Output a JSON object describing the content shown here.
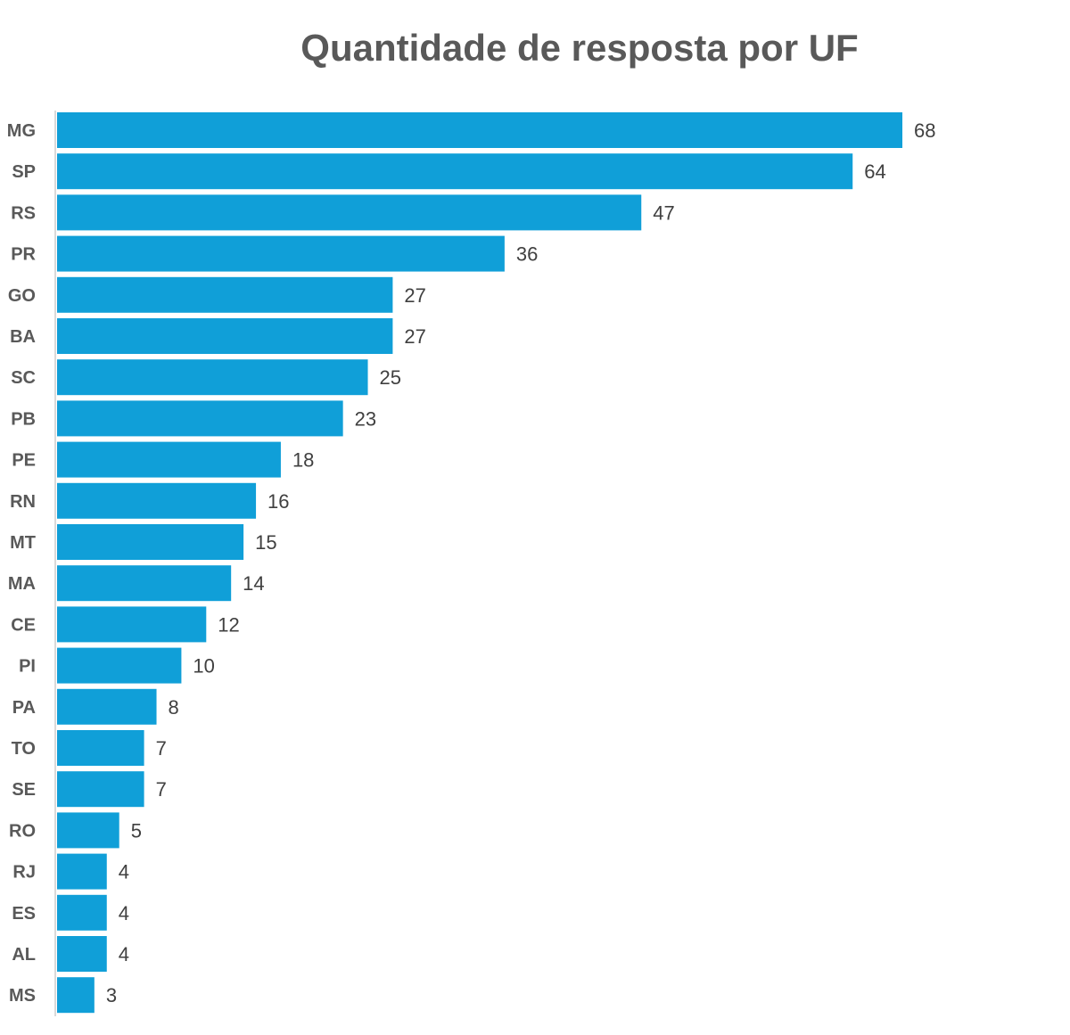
{
  "chart_data": {
    "type": "bar",
    "orientation": "horizontal",
    "title": "Quantidade de resposta por UF",
    "xlabel": "",
    "ylabel": "",
    "categories": [
      "MG",
      "SP",
      "RS",
      "PR",
      "GO",
      "BA",
      "SC",
      "PB",
      "PE",
      "RN",
      "MT",
      "MA",
      "CE",
      "PI",
      "PA",
      "TO",
      "SE",
      "RO",
      "RJ",
      "ES",
      "AL",
      "MS"
    ],
    "values": [
      68,
      64,
      47,
      36,
      27,
      27,
      25,
      23,
      18,
      16,
      15,
      14,
      12,
      10,
      8,
      7,
      7,
      5,
      4,
      4,
      4,
      3
    ],
    "xlim": [
      0,
      68
    ],
    "grid": false,
    "legend": "none",
    "bar_color": "#109FD8",
    "axis_color": "#D9D9D9"
  }
}
